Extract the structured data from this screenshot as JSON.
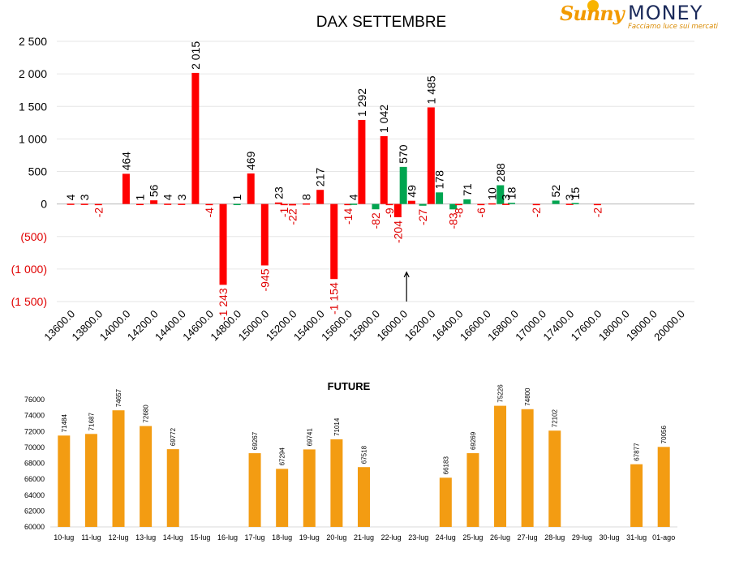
{
  "logo": {
    "brand_part1": "Sunny",
    "brand_part2": "MONEY",
    "tagline": "Facciamo luce sui mercati"
  },
  "colors": {
    "positive": "#ff0000",
    "negative_green": "#00a550",
    "bar_future": "#f39c12",
    "axis_text": "#000000",
    "neg_text": "#e00000"
  },
  "chart_data": [
    {
      "type": "bar",
      "title": "DAX SETTEMBRE",
      "xlabel": "",
      "ylabel": "",
      "ylim": [
        -1500,
        2500
      ],
      "y_ticks": [
        2500,
        2000,
        1500,
        1000,
        500,
        0,
        -500,
        -1000,
        -1500
      ],
      "y_tick_labels": [
        "2 500",
        "2 000",
        "1 500",
        "1 000",
        "500",
        "0",
        "(500)",
        "(1 000)",
        "(1 500)"
      ],
      "categories": [
        "13600.0",
        "13800.0",
        "14000.0",
        "14200.0",
        "14400.0",
        "14600.0",
        "14800.0",
        "15000.0",
        "15200.0",
        "15400.0",
        "15600.0",
        "15800.0",
        "16000.0",
        "16200.0",
        "16400.0",
        "16600.0",
        "16800.0",
        "17000.0",
        "17400.0",
        "17600.0",
        "18000.0",
        "19000.0",
        "20000.0"
      ],
      "bars": [
        {
          "slot": 0.0,
          "value": 4,
          "label": "4",
          "color": "red"
        },
        {
          "slot": 0.5,
          "value": 3,
          "label": "3",
          "color": "red"
        },
        {
          "slot": 1.0,
          "value": -2,
          "label": "-2",
          "color": "red"
        },
        {
          "slot": 2.0,
          "value": 464,
          "label": "464",
          "color": "red"
        },
        {
          "slot": 2.5,
          "value": 1,
          "label": "1",
          "color": "red"
        },
        {
          "slot": 3.0,
          "value": 56,
          "label": "56",
          "color": "red"
        },
        {
          "slot": 3.5,
          "value": 4,
          "label": "4",
          "color": "red"
        },
        {
          "slot": 4.0,
          "value": 3,
          "label": "3",
          "color": "red"
        },
        {
          "slot": 4.5,
          "value": 2015,
          "label": "2 015",
          "color": "red"
        },
        {
          "slot": 5.0,
          "value": -4,
          "label": "-4",
          "color": "red"
        },
        {
          "slot": 5.5,
          "value": -1243,
          "label": "-1 243",
          "color": "red"
        },
        {
          "slot": 6.0,
          "value": 1,
          "label": "1",
          "color": "green"
        },
        {
          "slot": 6.5,
          "value": 469,
          "label": "469",
          "color": "red"
        },
        {
          "slot": 7.0,
          "value": -945,
          "label": "-945",
          "color": "red"
        },
        {
          "slot": 7.5,
          "value": 23,
          "label": "23",
          "color": "red"
        },
        {
          "slot": 7.7,
          "value": -1,
          "label": "-1",
          "color": "red"
        },
        {
          "slot": 8.0,
          "value": -22,
          "label": "-22",
          "color": "red"
        },
        {
          "slot": 8.5,
          "value": 8,
          "label": "8",
          "color": "red"
        },
        {
          "slot": 9.0,
          "value": 217,
          "label": "217",
          "color": "red"
        },
        {
          "slot": 9.5,
          "value": -1154,
          "label": "-1 154",
          "color": "red"
        },
        {
          "slot": 10.0,
          "value": -14,
          "label": "-14",
          "color": "red"
        },
        {
          "slot": 10.2,
          "value": 4,
          "label": "4",
          "color": "green"
        },
        {
          "slot": 10.5,
          "value": 1292,
          "label": "1 292",
          "color": "red"
        },
        {
          "slot": 11.0,
          "value": -82,
          "label": "-82",
          "color": "green"
        },
        {
          "slot": 11.3,
          "value": 1042,
          "label": "1 042",
          "color": "red"
        },
        {
          "slot": 11.5,
          "value": -9,
          "label": "-9",
          "color": "red"
        },
        {
          "slot": 11.8,
          "value": -204,
          "label": "-204",
          "color": "red"
        },
        {
          "slot": 12.0,
          "value": 570,
          "label": "570",
          "color": "green"
        },
        {
          "slot": 12.3,
          "value": 49,
          "label": "49",
          "color": "red"
        },
        {
          "slot": 12.7,
          "value": -27,
          "label": "-27",
          "color": "green"
        },
        {
          "slot": 13.0,
          "value": 1485,
          "label": "1 485",
          "color": "red"
        },
        {
          "slot": 13.3,
          "value": 178,
          "label": "178",
          "color": "green"
        },
        {
          "slot": 13.8,
          "value": -83,
          "label": "-83",
          "color": "green"
        },
        {
          "slot": 14.0,
          "value": -8,
          "label": "-8",
          "color": "red"
        },
        {
          "slot": 14.3,
          "value": 71,
          "label": "71",
          "color": "green"
        },
        {
          "slot": 14.8,
          "value": -6,
          "label": "-6",
          "color": "red"
        },
        {
          "slot": 15.2,
          "value": 10,
          "label": "10",
          "color": "red"
        },
        {
          "slot": 15.5,
          "value": 288,
          "label": "288",
          "color": "green"
        },
        {
          "slot": 15.7,
          "value": 3,
          "label": "3",
          "color": "red"
        },
        {
          "slot": 15.9,
          "value": 18,
          "label": "18",
          "color": "green"
        },
        {
          "slot": 16.8,
          "value": -2,
          "label": "-2",
          "color": "red"
        },
        {
          "slot": 17.5,
          "value": 52,
          "label": "52",
          "color": "green"
        },
        {
          "slot": 18.0,
          "value": 3,
          "label": "3",
          "color": "red"
        },
        {
          "slot": 18.2,
          "value": 15,
          "label": "15",
          "color": "green"
        },
        {
          "slot": 19.0,
          "value": -2,
          "label": "-2",
          "color": "red"
        }
      ],
      "annotation": "arrow near 16000.0",
      "grid": true
    },
    {
      "type": "bar",
      "title": "FUTURE",
      "xlabel": "",
      "ylabel": "",
      "ylim": [
        60000,
        76000
      ],
      "y_ticks": [
        76000,
        74000,
        72000,
        70000,
        68000,
        66000,
        64000,
        62000,
        60000
      ],
      "categories": [
        "10-lug",
        "11-lug",
        "12-lug",
        "13-lug",
        "14-lug",
        "15-lug",
        "16-lug",
        "17-lug",
        "18-lug",
        "19-lug",
        "20-lug",
        "21-lug",
        "22-lug",
        "23-lug",
        "24-lug",
        "25-lug",
        "26-lug",
        "27-lug",
        "28-lug",
        "29-lug",
        "30-lug",
        "31-lug",
        "01-ago"
      ],
      "values": [
        71484,
        71687,
        74657,
        72680,
        69772,
        null,
        null,
        69267,
        67294,
        69741,
        71014,
        67518,
        null,
        null,
        66183,
        69269,
        75226,
        74800,
        72102,
        null,
        null,
        67877,
        70056
      ],
      "grid": false
    }
  ]
}
